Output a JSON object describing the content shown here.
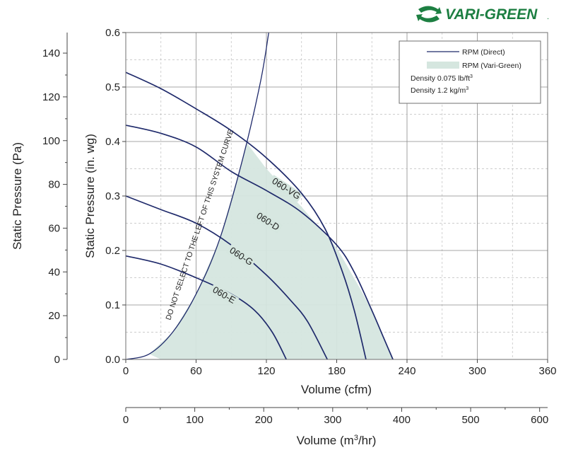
{
  "brand": {
    "logo_text": "VARI-GREEN",
    "trademark": ".",
    "color": "#1d7f42"
  },
  "colors": {
    "curve": "#1f2a6b",
    "fill": "#d5e6df",
    "grid_major": "#8a8a8a",
    "grid_minor": "#bdbdbd"
  },
  "chart_data": {
    "type": "line",
    "x": {
      "label": "Volume (cfm)",
      "range": [
        0,
        360
      ],
      "ticks": [
        0,
        60,
        120,
        180,
        240,
        300,
        360
      ]
    },
    "x2": {
      "label_prefix": "Volume (m",
      "label_sup": "3",
      "label_suffix": "/hr)",
      "range": [
        0,
        611.6
      ],
      "ticks": [
        0,
        100,
        200,
        300,
        400,
        500,
        600
      ]
    },
    "y": {
      "label": "Static Pressure (in. wg)",
      "range": [
        0,
        0.6
      ],
      "ticks": [
        "0.0",
        "0.1",
        "0.2",
        "0.3",
        "0.4",
        "0.5",
        "0.6"
      ]
    },
    "y2": {
      "label": "Static Pressure (Pa)",
      "range": [
        0,
        149.4
      ],
      "ticks": [
        0,
        20,
        40,
        60,
        80,
        100,
        120,
        140
      ]
    },
    "grid": true,
    "legend": {
      "position": "top-right",
      "entries": [
        "RPM (Direct)",
        "RPM (Vari-Green)"
      ],
      "density1_prefix": "Density  0.075 lb/ft",
      "density1_sup": "3",
      "density2_prefix": "Density  1.2 kg/m",
      "density2_sup": "3"
    },
    "series": [
      {
        "name": "060-VG",
        "points": [
          [
            0,
            0.43
          ],
          [
            30,
            0.415
          ],
          [
            60,
            0.39
          ],
          [
            90,
            0.345
          ],
          [
            120,
            0.31
          ],
          [
            150,
            0.27
          ],
          [
            180,
            0.21
          ],
          [
            195,
            0.16
          ],
          [
            210,
            0.09
          ],
          [
            220,
            0.04
          ],
          [
            228,
            0
          ]
        ]
      },
      {
        "name": "060-D",
        "points": [
          [
            0,
            0.527
          ],
          [
            30,
            0.497
          ],
          [
            60,
            0.46
          ],
          [
            90,
            0.42
          ],
          [
            120,
            0.37
          ],
          [
            150,
            0.305
          ],
          [
            170,
            0.24
          ],
          [
            185,
            0.16
          ],
          [
            195,
            0.09
          ],
          [
            205,
            0
          ]
        ]
      },
      {
        "name": "060-G",
        "points": [
          [
            0,
            0.3
          ],
          [
            30,
            0.275
          ],
          [
            60,
            0.25
          ],
          [
            90,
            0.21
          ],
          [
            120,
            0.155
          ],
          [
            140,
            0.11
          ],
          [
            155,
            0.07
          ],
          [
            172,
            0
          ]
        ]
      },
      {
        "name": "060-E",
        "points": [
          [
            0,
            0.19
          ],
          [
            30,
            0.175
          ],
          [
            60,
            0.15
          ],
          [
            90,
            0.12
          ],
          [
            110,
            0.09
          ],
          [
            125,
            0.05
          ],
          [
            137,
            0
          ]
        ]
      }
    ],
    "system_curve": {
      "label": "DO NOT SELECT TO THE LEFT OF THIS SYSTEM CURVE",
      "points": [
        [
          0,
          0
        ],
        [
          20,
          0.01
        ],
        [
          40,
          0.05
        ],
        [
          60,
          0.12
        ],
        [
          80,
          0.22
        ],
        [
          100,
          0.37
        ],
        [
          115,
          0.51
        ],
        [
          122,
          0.6
        ]
      ]
    },
    "vari_green_region": {
      "points": [
        [
          20,
          0.01
        ],
        [
          40,
          0.05
        ],
        [
          60,
          0.12
        ],
        [
          80,
          0.22
        ],
        [
          100,
          0.37
        ],
        [
          103,
          0.398
        ],
        [
          120,
          0.35
        ],
        [
          150,
          0.28
        ],
        [
          180,
          0.205
        ],
        [
          200,
          0.13
        ],
        [
          210,
          0.09
        ],
        [
          220,
          0.04
        ],
        [
          228,
          0
        ],
        [
          30,
          0
        ]
      ]
    }
  }
}
